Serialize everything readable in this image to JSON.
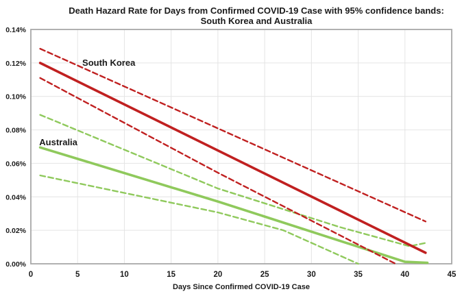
{
  "title": {
    "line1": "Death Hazard Rate for Days from Confirmed COVID-19 Case with 95% confidence bands:",
    "line2": "South Korea and Australia"
  },
  "chart_data": {
    "type": "line",
    "title": "Death Hazard Rate for Days from Confirmed COVID-19 Case with 95% confidence bands: South Korea and Australia",
    "xlabel": "Days Since Confirmed COVID-19 Case",
    "ylabel": "",
    "xlim": [
      0,
      45
    ],
    "ylim": [
      0,
      0.14
    ],
    "y_unit": "percent",
    "grid": true,
    "legend_position": "inline-labels",
    "x_ticks": [
      0,
      5,
      10,
      15,
      20,
      25,
      30,
      35,
      40,
      45
    ],
    "y_ticks": [
      {
        "value": 0.0,
        "label": "0.00%"
      },
      {
        "value": 0.02,
        "label": "0.02%"
      },
      {
        "value": 0.04,
        "label": "0.04%"
      },
      {
        "value": 0.06,
        "label": "0.06%"
      },
      {
        "value": 0.08,
        "label": "0.08%"
      },
      {
        "value": 0.1,
        "label": "0.10%"
      },
      {
        "value": 0.12,
        "label": "0.12%"
      },
      {
        "value": 0.14,
        "label": "0.14%"
      }
    ],
    "colors": {
      "south_korea": "#C02020",
      "australia": "#8FC95C",
      "gridline": "#E4E4E4",
      "border": "#A8A8A8",
      "text": "#1A1A1A"
    },
    "series": [
      {
        "id": "australia-upper-ci",
        "name": "Australia upper 95% CI",
        "style": "dashed",
        "color": "#8FC95C",
        "points": [
          [
            1,
            0.089
          ],
          [
            20,
            0.045
          ],
          [
            33,
            0.022
          ],
          [
            40.5,
            0.0105
          ],
          [
            42.4,
            0.0127
          ]
        ]
      },
      {
        "id": "australia-hazard",
        "name": "Australia",
        "style": "solid",
        "color": "#8FC95C",
        "points": [
          [
            1,
            0.0695
          ],
          [
            20,
            0.0372
          ],
          [
            40,
            0.0012
          ],
          [
            42.4,
            0.0006
          ]
        ]
      },
      {
        "id": "australia-lower-ci",
        "name": "Australia lower 95% CI",
        "style": "dashed",
        "color": "#8FC95C",
        "points": [
          [
            1,
            0.0528
          ],
          [
            20,
            0.0307
          ],
          [
            27,
            0.02
          ],
          [
            35,
            0.0
          ]
        ]
      },
      {
        "id": "south-korea-upper-ci",
        "name": "South Korea upper 95% CI",
        "style": "dashed",
        "color": "#C02020",
        "points": [
          [
            1,
            0.1285
          ],
          [
            42.2,
            0.0253
          ]
        ]
      },
      {
        "id": "south-korea-hazard",
        "name": "South Korea",
        "style": "solid",
        "color": "#C02020",
        "points": [
          [
            1,
            0.12
          ],
          [
            42.2,
            0.0066
          ]
        ]
      },
      {
        "id": "south-korea-lower-ci",
        "name": "South Korea lower 95% CI",
        "style": "dashed",
        "color": "#C02020",
        "points": [
          [
            1,
            0.111
          ],
          [
            20,
            0.0544
          ],
          [
            39,
            0.0
          ]
        ]
      }
    ],
    "annotations": [
      {
        "id": "south-korea",
        "text": "South Korea",
        "x": 5.5,
        "y": 0.1183
      },
      {
        "id": "australia",
        "text": "Australia",
        "x": 0.9,
        "y": 0.0708
      }
    ]
  }
}
